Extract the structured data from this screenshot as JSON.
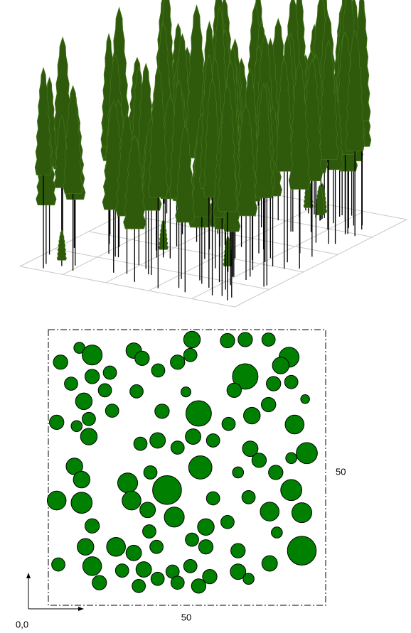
{
  "chart_data": {
    "type": "scatter",
    "x_label": "50",
    "y_label": "50",
    "origin_label": "0,0",
    "xlim": [
      0,
      50
    ],
    "ylim": [
      0,
      50
    ],
    "color": "#008000",
    "x": [
      2.2,
      5.6,
      7.9,
      4.1,
      7.9,
      11.1,
      15.4,
      16.9,
      19.8,
      23.3,
      25.9,
      25.6,
      32.3,
      35.5,
      39.7,
      43.4,
      41.9,
      35.5,
      33.5,
      40.6,
      43.8,
      24.8,
      10.2,
      6.4,
      1.5,
      5.1,
      7.3,
      11.5,
      20.5,
      15.9,
      27.1,
      32.5,
      36.7,
      39.7,
      44.4,
      46.3,
      7.3,
      16.6,
      19.7,
      23.3,
      26.1,
      29.7,
      36.4,
      38.0,
      43.8,
      46.6,
      4.7,
      6.0,
      14.3,
      18.4,
      21.4,
      27.4,
      34.2,
      41.0,
      43.8,
      1.5,
      6.0,
      15.0,
      17.9,
      22.7,
      29.7,
      36.1,
      39.9,
      45.7,
      7.9,
      18.2,
      28.4,
      32.3,
      41.2,
      45.7,
      6.7,
      12.2,
      15.4,
      19.5,
      25.9,
      28.4,
      34.2,
      1.8,
      7.9,
      13.3,
      17.2,
      22.4,
      25.6,
      29.1,
      34.2,
      39.9,
      9.2,
      16.3,
      19.7,
      23.3,
      27.1,
      36.1
    ],
    "values": [
      44.1,
      46.7,
      45.4,
      40.2,
      41.5,
      42.2,
      46.2,
      44.8,
      42.6,
      44.1,
      48.2,
      45.4,
      48.0,
      48.2,
      48.2,
      45.0,
      43.5,
      41.5,
      39.0,
      40.2,
      40.5,
      38.7,
      39.0,
      37.0,
      33.2,
      32.5,
      33.8,
      35.3,
      35.2,
      38.8,
      34.8,
      32.9,
      34.4,
      36.4,
      32.8,
      37.4,
      30.6,
      29.3,
      29.9,
      28.6,
      30.6,
      29.9,
      28.4,
      26.3,
      26.7,
      27.6,
      25.2,
      22.8,
      22.2,
      24.1,
      20.9,
      25.0,
      24.1,
      24.1,
      20.9,
      19.0,
      18.6,
      19.0,
      17.3,
      16.0,
      19.4,
      19.6,
      17.0,
      16.8,
      14.4,
      13.4,
      14.2,
      15.1,
      13.2,
      9.9,
      10.6,
      10.6,
      9.5,
      10.6,
      11.9,
      10.6,
      9.9,
      7.4,
      7.1,
      6.3,
      6.5,
      6.1,
      7.1,
      5.2,
      6.1,
      7.6,
      4.1,
      3.5,
      4.8,
      4.1,
      3.5,
      4.8
    ],
    "sizes": [
      1.3,
      1.0,
      1.8,
      1.2,
      1.3,
      1.2,
      1.4,
      1.3,
      1.2,
      1.3,
      1.5,
      1.2,
      1.3,
      1.3,
      1.2,
      1.8,
      1.5,
      2.3,
      1.3,
      1.3,
      1.2,
      0.9,
      1.2,
      1.5,
      1.3,
      1.0,
      1.2,
      1.2,
      1.3,
      1.2,
      2.3,
      1.2,
      1.5,
      1.3,
      1.7,
      0.8,
      1.5,
      1.2,
      1.4,
      1.2,
      1.4,
      1.2,
      1.4,
      1.3,
      1.0,
      1.9,
      1.5,
      1.5,
      1.8,
      1.2,
      2.6,
      2.1,
      1.0,
      1.3,
      1.9,
      1.7,
      1.9,
      1.7,
      1.4,
      1.8,
      1.2,
      1.2,
      1.7,
      1.8,
      1.3,
      1.2,
      1.5,
      1.2,
      1.0,
      2.6,
      1.5,
      1.7,
      1.4,
      1.2,
      1.2,
      1.3,
      1.3,
      1.2,
      1.7,
      1.2,
      1.4,
      1.2,
      1.2,
      1.3,
      1.4,
      1.4,
      1.3,
      1.2,
      1.2,
      1.2,
      1.3,
      1.0
    ]
  }
}
